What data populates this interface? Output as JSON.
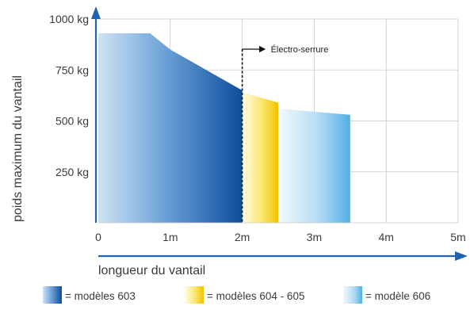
{
  "chart_data": {
    "type": "area",
    "xlabel": "longueur du vantail",
    "ylabel": "poids maximum du vantail",
    "xlim": [
      0,
      5
    ],
    "ylim": [
      0,
      1000
    ],
    "x_ticks": [
      {
        "value": 0,
        "label": "0"
      },
      {
        "value": 1,
        "label": "1m"
      },
      {
        "value": 2,
        "label": "2m"
      },
      {
        "value": 3,
        "label": "3m"
      },
      {
        "value": 4,
        "label": "4m"
      },
      {
        "value": 5,
        "label": "5m"
      }
    ],
    "y_ticks": [
      {
        "value": 250,
        "label": "250 kg"
      },
      {
        "value": 500,
        "label": "500 kg"
      },
      {
        "value": 750,
        "label": "750 kg"
      },
      {
        "value": 1000,
        "label": "1000 kg"
      }
    ],
    "grid": true,
    "series": [
      {
        "name": "= modèles 603",
        "color": "#1a5faa",
        "points": [
          [
            0,
            930
          ],
          [
            0.72,
            930
          ],
          [
            1.0,
            850
          ],
          [
            1.5,
            750
          ],
          [
            2.0,
            650
          ],
          [
            2.0,
            0
          ]
        ]
      },
      {
        "name": "= modèles 604 - 605",
        "color": "#f3cf1f",
        "points": [
          [
            2.0,
            640
          ],
          [
            2.5,
            590
          ],
          [
            2.5,
            0
          ]
        ]
      },
      {
        "name": "= modèle 606",
        "color": "#5ab4e6",
        "points": [
          [
            2.5,
            560
          ],
          [
            3.5,
            530
          ],
          [
            3.5,
            0
          ]
        ]
      }
    ],
    "annotations": [
      {
        "text": "Électro-serrure",
        "x": 2.0
      }
    ],
    "legend_position": "bottom"
  }
}
